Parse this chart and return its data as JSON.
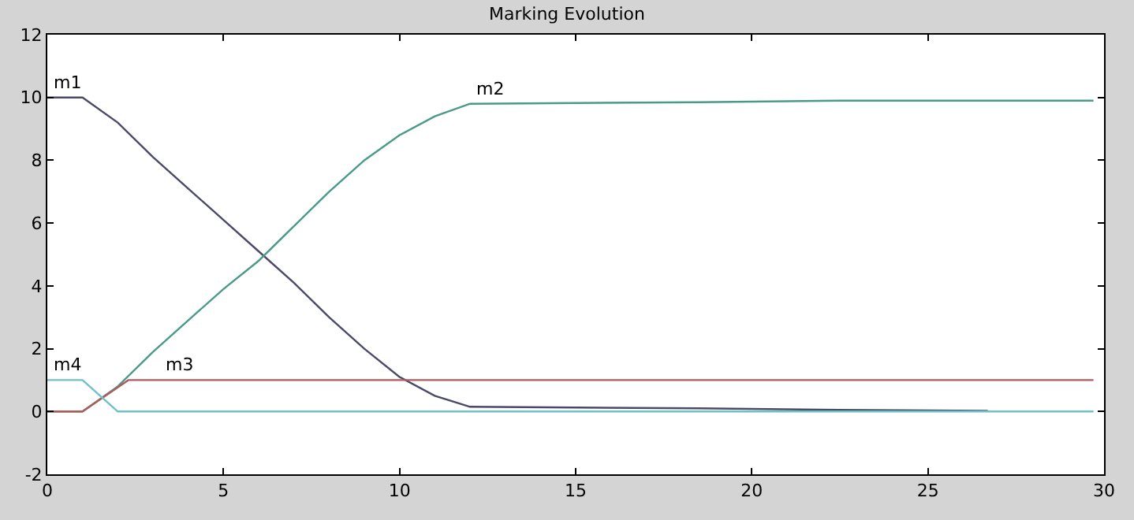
{
  "chart_data": {
    "type": "line",
    "title": "Marking Evolution",
    "series": [
      {
        "color": "#4a4a68",
        "x": [
          0,
          1,
          2,
          3,
          4,
          5,
          6,
          7,
          8,
          9,
          10,
          11,
          12,
          18.5,
          22.5,
          26.7
        ],
        "values": [
          10,
          10,
          9.2,
          8.1,
          7.1,
          6.1,
          5.1,
          4.1,
          3.0,
          2.0,
          1.1,
          0.5,
          0.15,
          0.1,
          0.05,
          0.02
        ]
      },
      {
        "color": "#4a9a8a",
        "x": [
          0,
          1,
          2,
          3,
          4,
          5,
          6,
          7,
          8,
          9,
          10,
          11,
          12,
          18.5,
          22.5,
          29.7
        ],
        "values": [
          0,
          0,
          0.8,
          1.9,
          2.9,
          3.9,
          4.8,
          5.9,
          7.0,
          8.0,
          8.8,
          9.4,
          9.8,
          9.85,
          9.9,
          9.9
        ]
      },
      {
        "color": "#b05a5a",
        "x": [
          0,
          1,
          2.3,
          3.2,
          29.7
        ],
        "values": [
          0,
          0,
          1,
          1,
          1
        ]
      },
      {
        "color": "#70c0c8",
        "x": [
          0,
          1,
          2,
          29.7
        ],
        "values": [
          1,
          1,
          0,
          0
        ]
      }
    ],
    "annotations": [
      {
        "text": "m1",
        "x": 0,
        "y": 10
      },
      {
        "text": "m2",
        "x": 12,
        "y": 9.8
      },
      {
        "text": "m3",
        "x": 3.2,
        "y": 1
      },
      {
        "text": "m4",
        "x": 0,
        "y": 1
      }
    ],
    "xlim": [
      0,
      30
    ],
    "xticks": [
      0,
      5,
      10,
      15,
      20,
      25,
      30
    ],
    "ylim": [
      -2,
      12
    ],
    "yticks": [
      -2,
      0,
      2,
      4,
      6,
      8,
      10,
      12
    ],
    "marker": "none",
    "line_style": "solid"
  }
}
